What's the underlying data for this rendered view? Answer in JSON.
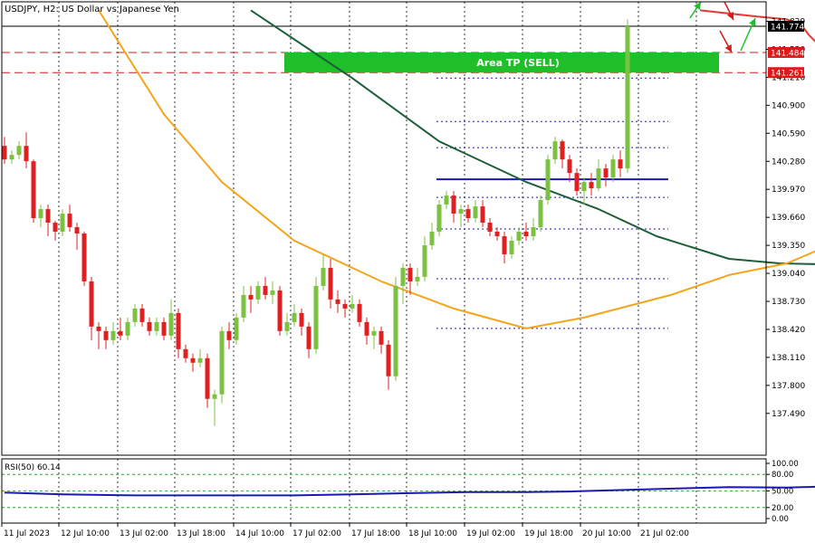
{
  "chart_data": {
    "type": "candlestick",
    "title": "USDJPY, H2:  US Dollar vs Japanese Yen",
    "symbol": "USDJPY",
    "timeframe": "H2",
    "y_ticks": [
      "141.829",
      "141.520",
      "141.210",
      "140.900",
      "140.590",
      "140.280",
      "139.970",
      "139.660",
      "139.350",
      "139.040",
      "138.730",
      "138.420",
      "138.110",
      "137.800",
      "137.490"
    ],
    "x_ticks": [
      "11 Jul 2023",
      "12 Jul 10:00",
      "13 Jul 02:00",
      "13 Jul 18:00",
      "14 Jul 10:00",
      "17 Jul 02:00",
      "17 Jul 18:00",
      "18 Jul 10:00",
      "19 Jul 02:00",
      "19 Jul 18:00",
      "20 Jul 10:00",
      "21 Jul 02:00"
    ],
    "ylim": [
      137.25,
      141.95
    ],
    "price_labels": [
      {
        "value": 141.774,
        "text": "141.774",
        "style": "current"
      },
      {
        "value": 141.484,
        "text": "141.484",
        "style": "red"
      },
      {
        "value": 141.261,
        "text": "141.261",
        "style": "red"
      }
    ],
    "annotations": {
      "tp_zone": {
        "label": "Area TP (SELL)",
        "from": 141.261,
        "to": 141.484,
        "color": "#1fbf2a"
      },
      "support_line": {
        "value": 140.08,
        "color": "#1a1ab0"
      },
      "dotted_levels": [
        141.774,
        141.2,
        140.72,
        140.43,
        139.88,
        139.53,
        138.98,
        138.43
      ],
      "arrows": [
        {
          "color": "#d81b1b",
          "direction": "down"
        },
        {
          "color": "#d81b1b",
          "direction": "down"
        },
        {
          "color": "#1fbf2a",
          "direction": "up"
        },
        {
          "color": "#1fbf2a",
          "direction": "up"
        }
      ]
    },
    "moving_averages": [
      {
        "color": "#e53935",
        "values": [
          [
            96,
            141.95
          ],
          [
            104,
            141.88
          ],
          [
            108,
            141.85
          ],
          [
            110,
            141.79
          ],
          [
            111,
            141.68
          ],
          [
            113,
            141.52
          ]
        ]
      },
      {
        "color": "#1e5e3a",
        "values": [
          [
            34,
            141.95
          ],
          [
            48,
            141.2
          ],
          [
            60,
            140.5
          ],
          [
            72,
            140.05
          ],
          [
            82,
            139.75
          ],
          [
            90,
            139.45
          ],
          [
            100,
            139.2
          ],
          [
            107,
            139.15
          ],
          [
            113,
            139.14
          ]
        ]
      },
      {
        "color": "#f4a51c",
        "values": [
          [
            13,
            141.95
          ],
          [
            22,
            140.8
          ],
          [
            30,
            140.05
          ],
          [
            40,
            139.4
          ],
          [
            52,
            138.95
          ],
          [
            62,
            138.65
          ],
          [
            72,
            138.43
          ],
          [
            80,
            138.55
          ],
          [
            92,
            138.8
          ],
          [
            100,
            139.02
          ],
          [
            108,
            139.15
          ],
          [
            113,
            139.32
          ]
        ]
      }
    ],
    "candles": [
      [
        140.45,
        140.3,
        140.55,
        140.25
      ],
      [
        140.3,
        140.35,
        140.4,
        140.25
      ],
      [
        140.35,
        140.45,
        140.5,
        140.3
      ],
      [
        140.45,
        140.28,
        140.6,
        140.2
      ],
      [
        140.28,
        139.65,
        140.3,
        139.6
      ],
      [
        139.65,
        139.75,
        139.8,
        139.55
      ],
      [
        139.75,
        139.6,
        139.8,
        139.45
      ],
      [
        139.6,
        139.5,
        139.62,
        139.4
      ],
      [
        139.5,
        139.7,
        139.75,
        139.45
      ],
      [
        139.7,
        139.55,
        139.8,
        139.5
      ],
      [
        139.55,
        139.48,
        139.6,
        139.3
      ],
      [
        139.48,
        138.95,
        139.5,
        138.9
      ],
      [
        138.95,
        138.45,
        139.0,
        138.3
      ],
      [
        138.45,
        138.4,
        138.5,
        138.2
      ],
      [
        138.4,
        138.3,
        138.45,
        138.2
      ],
      [
        138.3,
        138.4,
        138.5,
        138.25
      ],
      [
        138.4,
        138.35,
        138.55,
        138.3
      ],
      [
        138.35,
        138.5,
        138.55,
        138.3
      ],
      [
        138.5,
        138.65,
        138.7,
        138.45
      ],
      [
        138.65,
        138.5,
        138.7,
        138.45
      ],
      [
        138.5,
        138.4,
        138.55,
        138.35
      ],
      [
        138.4,
        138.5,
        138.55,
        138.35
      ],
      [
        138.5,
        138.35,
        138.55,
        138.3
      ],
      [
        138.35,
        138.6,
        138.75,
        138.3
      ],
      [
        138.6,
        138.2,
        138.65,
        138.1
      ],
      [
        138.2,
        138.1,
        138.25,
        138.05
      ],
      [
        138.1,
        138.05,
        138.15,
        137.95
      ],
      [
        138.05,
        138.1,
        138.2,
        138.0
      ],
      [
        138.1,
        137.65,
        138.15,
        137.55
      ],
      [
        137.65,
        137.7,
        137.75,
        137.35
      ],
      [
        137.7,
        138.4,
        138.45,
        137.6
      ],
      [
        138.4,
        138.3,
        138.5,
        138.2
      ],
      [
        138.3,
        138.55,
        138.6,
        138.25
      ],
      [
        138.55,
        138.8,
        138.9,
        138.5
      ],
      [
        138.8,
        138.75,
        138.9,
        138.6
      ],
      [
        138.75,
        138.9,
        138.95,
        138.7
      ],
      [
        138.9,
        138.8,
        139.0,
        138.75
      ],
      [
        138.8,
        138.85,
        138.95,
        138.7
      ],
      [
        138.85,
        138.4,
        138.9,
        138.35
      ],
      [
        138.4,
        138.5,
        138.6,
        138.35
      ],
      [
        138.5,
        138.6,
        138.7,
        138.45
      ],
      [
        138.6,
        138.45,
        138.65,
        138.35
      ],
      [
        138.45,
        138.2,
        138.5,
        138.1
      ],
      [
        138.2,
        138.9,
        139.0,
        138.15
      ],
      [
        138.9,
        139.1,
        139.25,
        138.85
      ],
      [
        139.1,
        138.75,
        139.2,
        138.65
      ],
      [
        138.75,
        138.7,
        138.85,
        138.6
      ],
      [
        138.7,
        138.65,
        138.75,
        138.55
      ],
      [
        138.65,
        138.7,
        138.8,
        138.6
      ],
      [
        138.7,
        138.5,
        138.75,
        138.45
      ],
      [
        138.5,
        138.35,
        138.55,
        138.25
      ],
      [
        138.35,
        138.4,
        138.45,
        138.2
      ],
      [
        138.4,
        138.25,
        138.45,
        138.15
      ],
      [
        138.25,
        137.9,
        138.3,
        137.75
      ],
      [
        137.9,
        138.9,
        139.0,
        137.85
      ],
      [
        138.9,
        139.1,
        139.15,
        138.7
      ],
      [
        139.1,
        138.95,
        139.15,
        138.8
      ],
      [
        138.95,
        139.0,
        139.1,
        138.9
      ],
      [
        139.0,
        139.35,
        139.45,
        138.95
      ],
      [
        139.35,
        139.5,
        139.6,
        139.3
      ],
      [
        139.5,
        139.8,
        139.85,
        139.45
      ],
      [
        139.8,
        139.9,
        139.95,
        139.75
      ],
      [
        139.9,
        139.7,
        139.95,
        139.6
      ],
      [
        139.7,
        139.75,
        139.8,
        139.55
      ],
      [
        139.75,
        139.65,
        139.8,
        139.6
      ],
      [
        139.65,
        139.78,
        139.85,
        139.6
      ],
      [
        139.78,
        139.6,
        139.85,
        139.55
      ],
      [
        139.6,
        139.5,
        139.65,
        139.45
      ],
      [
        139.5,
        139.45,
        139.55,
        139.4
      ],
      [
        139.45,
        139.25,
        139.5,
        139.15
      ],
      [
        139.25,
        139.4,
        139.45,
        139.2
      ],
      [
        139.4,
        139.5,
        139.55,
        139.35
      ],
      [
        139.5,
        139.45,
        139.6,
        139.4
      ],
      [
        139.45,
        139.55,
        139.65,
        139.4
      ],
      [
        139.55,
        139.85,
        139.9,
        139.5
      ],
      [
        139.85,
        140.3,
        140.35,
        139.8
      ],
      [
        140.3,
        140.5,
        140.55,
        140.25
      ],
      [
        140.5,
        140.3,
        140.52,
        140.2
      ],
      [
        140.3,
        140.15,
        140.35,
        140.05
      ],
      [
        140.15,
        139.95,
        140.2,
        139.9
      ],
      [
        139.95,
        140.05,
        140.1,
        139.8
      ],
      [
        140.05,
        139.98,
        140.15,
        139.9
      ],
      [
        139.98,
        140.2,
        140.3,
        139.95
      ],
      [
        140.2,
        140.1,
        140.25,
        140.0
      ],
      [
        140.1,
        140.3,
        140.35,
        140.05
      ],
      [
        140.3,
        140.2,
        140.4,
        140.1
      ],
      [
        140.2,
        141.774,
        141.85,
        140.15
      ]
    ],
    "rsi": {
      "label": "RSI(50) 60.14",
      "ticks": [
        "100.00",
        "80.00",
        "50.00",
        "20.00",
        "0.00"
      ],
      "ylim": [
        0,
        100
      ],
      "values": [
        [
          0,
          47
        ],
        [
          8,
          44
        ],
        [
          18,
          42
        ],
        [
          28,
          42
        ],
        [
          40,
          42
        ],
        [
          48,
          44
        ],
        [
          56,
          46
        ],
        [
          64,
          48
        ],
        [
          72,
          48
        ],
        [
          78,
          49
        ],
        [
          86,
          52
        ],
        [
          94,
          55
        ],
        [
          100,
          57
        ],
        [
          108,
          56
        ],
        [
          113,
          58
        ],
        [
          116,
          60.14
        ]
      ]
    }
  }
}
